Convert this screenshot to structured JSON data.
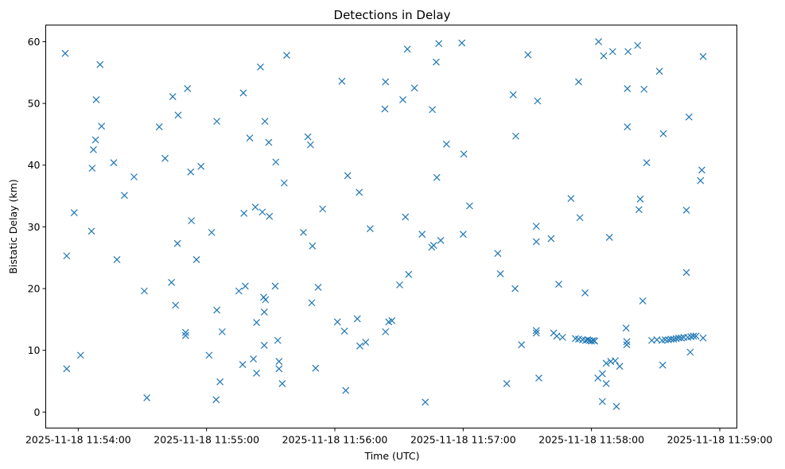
{
  "chart_data": {
    "type": "scatter",
    "title": "Detections in Delay",
    "xlabel": "Time (UTC)",
    "ylabel": "Bistatic Delay (km)",
    "marker": "x",
    "color": "#1f77b4",
    "x_unit": "seconds after 2025-11-18 11:54:00",
    "xlim": [
      -15.2,
      308.0
    ],
    "ylim": [
      -2.6,
      62.7
    ],
    "x_ticks": [
      {
        "value": 0,
        "label": "2025-11-18 11:54:00"
      },
      {
        "value": 60,
        "label": "2025-11-18 11:55:00"
      },
      {
        "value": 120,
        "label": "2025-11-18 11:56:00"
      },
      {
        "value": 180,
        "label": "2025-11-18 11:57:00"
      },
      {
        "value": 240,
        "label": "2025-11-18 11:58:00"
      },
      {
        "value": 300,
        "label": "2025-11-18 11:59:00"
      }
    ],
    "y_ticks": [
      {
        "value": 0,
        "label": "0"
      },
      {
        "value": 10,
        "label": "10"
      },
      {
        "value": 20,
        "label": "20"
      },
      {
        "value": 30,
        "label": "30"
      },
      {
        "value": 40,
        "label": "40"
      },
      {
        "value": 50,
        "label": "50"
      },
      {
        "value": 60,
        "label": "60"
      }
    ],
    "points": [
      [
        -6.1,
        58.1
      ],
      [
        -5.4,
        25.3
      ],
      [
        -5.4,
        7.0
      ],
      [
        -1.9,
        32.3
      ],
      [
        1.1,
        9.2
      ],
      [
        6.2,
        29.3
      ],
      [
        6.5,
        39.5
      ],
      [
        7.1,
        42.5
      ],
      [
        8.1,
        44.1
      ],
      [
        8.4,
        50.6
      ],
      [
        10.2,
        56.3
      ],
      [
        10.9,
        46.3
      ],
      [
        16.6,
        40.4
      ],
      [
        18.1,
        24.7
      ],
      [
        21.6,
        35.1
      ],
      [
        26.1,
        38.1
      ],
      [
        30.9,
        19.6
      ],
      [
        32.1,
        2.3
      ],
      [
        37.9,
        46.2
      ],
      [
        40.6,
        41.1
      ],
      [
        43.6,
        21.0
      ],
      [
        44.2,
        51.1
      ],
      [
        45.5,
        17.3
      ],
      [
        46.4,
        27.3
      ],
      [
        46.7,
        48.1
      ],
      [
        50.2,
        12.9
      ],
      [
        50.2,
        12.4
      ],
      [
        51.1,
        52.4
      ],
      [
        52.6,
        38.9
      ],
      [
        52.9,
        31.0
      ],
      [
        55.3,
        24.7
      ],
      [
        57.4,
        39.8
      ],
      [
        61.2,
        9.2
      ],
      [
        62.4,
        29.1
      ],
      [
        64.5,
        2.0
      ],
      [
        64.8,
        16.5
      ],
      [
        64.8,
        47.1
      ],
      [
        66.3,
        4.9
      ],
      [
        67.3,
        13.0
      ],
      [
        75.1,
        19.6
      ],
      [
        76.9,
        7.7
      ],
      [
        77.2,
        51.7
      ],
      [
        77.5,
        32.2
      ],
      [
        78.1,
        20.4
      ],
      [
        80.2,
        44.4
      ],
      [
        81.9,
        8.6
      ],
      [
        82.8,
        33.2
      ],
      [
        83.4,
        14.5
      ],
      [
        83.4,
        6.3
      ],
      [
        85.2,
        55.9
      ],
      [
        86.1,
        32.4
      ],
      [
        86.7,
        18.6
      ],
      [
        87.0,
        10.8
      ],
      [
        87.0,
        16.2
      ],
      [
        87.3,
        47.1
      ],
      [
        87.6,
        18.2
      ],
      [
        89.1,
        43.7
      ],
      [
        89.4,
        31.7
      ],
      [
        92.1,
        20.4
      ],
      [
        92.4,
        40.5
      ],
      [
        93.3,
        11.6
      ],
      [
        93.9,
        8.2
      ],
      [
        93.9,
        7.0
      ],
      [
        95.4,
        4.6
      ],
      [
        96.3,
        37.1
      ],
      [
        97.5,
        57.8
      ],
      [
        105.3,
        29.1
      ],
      [
        107.4,
        44.6
      ],
      [
        108.6,
        43.3
      ],
      [
        109.2,
        17.7
      ],
      [
        109.5,
        26.9
      ],
      [
        111.0,
        7.1
      ],
      [
        112.2,
        20.2
      ],
      [
        114.3,
        32.9
      ],
      [
        121.2,
        14.6
      ],
      [
        123.3,
        53.6
      ],
      [
        124.5,
        13.1
      ],
      [
        125.1,
        3.5
      ],
      [
        126.0,
        38.3
      ],
      [
        130.5,
        15.1
      ],
      [
        131.4,
        35.6
      ],
      [
        131.7,
        10.7
      ],
      [
        134.4,
        11.3
      ],
      [
        136.5,
        29.7
      ],
      [
        143.4,
        49.1
      ],
      [
        143.7,
        53.5
      ],
      [
        143.7,
        13.0
      ],
      [
        145.2,
        14.6
      ],
      [
        146.7,
        14.8
      ],
      [
        150.3,
        20.6
      ],
      [
        151.8,
        50.6
      ],
      [
        153.0,
        31.6
      ],
      [
        153.9,
        58.8
      ],
      [
        154.5,
        22.3
      ],
      [
        157.2,
        52.5
      ],
      [
        160.8,
        28.8
      ],
      [
        162.3,
        1.6
      ],
      [
        165.3,
        26.7
      ],
      [
        165.6,
        49.0
      ],
      [
        166.2,
        27.0
      ],
      [
        167.4,
        56.7
      ],
      [
        167.7,
        38.0
      ],
      [
        168.6,
        59.7
      ],
      [
        169.5,
        27.8
      ],
      [
        172.2,
        43.4
      ],
      [
        179.4,
        59.8
      ],
      [
        180.0,
        28.8
      ],
      [
        180.3,
        41.8
      ],
      [
        183.0,
        33.4
      ],
      [
        196.2,
        25.7
      ],
      [
        197.4,
        22.4
      ],
      [
        200.4,
        4.6
      ],
      [
        203.4,
        51.4
      ],
      [
        204.6,
        44.7
      ],
      [
        204.3,
        20.0
      ],
      [
        207.3,
        10.9
      ],
      [
        210.3,
        57.9
      ],
      [
        214.2,
        27.6
      ],
      [
        214.2,
        30.1
      ],
      [
        214.2,
        13.2
      ],
      [
        214.2,
        12.8
      ],
      [
        214.8,
        50.4
      ],
      [
        215.4,
        5.5
      ],
      [
        221.1,
        28.1
      ],
      [
        222.3,
        12.8
      ],
      [
        223.8,
        12.3
      ],
      [
        224.7,
        20.7
      ],
      [
        226.5,
        12.1
      ],
      [
        230.4,
        34.6
      ],
      [
        232.5,
        11.9
      ],
      [
        234.0,
        53.5
      ],
      [
        234.0,
        11.8
      ],
      [
        234.6,
        31.5
      ],
      [
        235.8,
        11.7
      ],
      [
        237.0,
        19.3
      ],
      [
        237.3,
        11.6
      ],
      [
        238.2,
        11.7
      ],
      [
        239.1,
        11.6
      ],
      [
        240.0,
        11.5
      ],
      [
        240.9,
        11.6
      ],
      [
        241.5,
        11.5
      ],
      [
        243.0,
        5.5
      ],
      [
        243.3,
        60.0
      ],
      [
        245.1,
        1.7
      ],
      [
        245.1,
        6.2
      ],
      [
        245.7,
        57.7
      ],
      [
        246.9,
        4.6
      ],
      [
        246.9,
        7.9
      ],
      [
        248.4,
        28.3
      ],
      [
        249.0,
        8.2
      ],
      [
        249.9,
        58.4
      ],
      [
        251.1,
        8.3
      ],
      [
        251.7,
        0.9
      ],
      [
        253.2,
        7.4
      ],
      [
        256.2,
        13.6
      ],
      [
        256.5,
        11.4
      ],
      [
        256.5,
        10.9
      ],
      [
        256.8,
        52.4
      ],
      [
        256.8,
        46.2
      ],
      [
        257.1,
        58.4
      ],
      [
        261.6,
        59.4
      ],
      [
        262.2,
        32.8
      ],
      [
        262.8,
        34.5
      ],
      [
        264.0,
        18.0
      ],
      [
        264.6,
        52.3
      ],
      [
        265.8,
        40.4
      ],
      [
        268.2,
        11.6
      ],
      [
        270.6,
        11.7
      ],
      [
        271.8,
        55.2
      ],
      [
        273.0,
        11.6
      ],
      [
        273.3,
        7.6
      ],
      [
        273.6,
        45.1
      ],
      [
        274.5,
        11.7
      ],
      [
        276.0,
        11.7
      ],
      [
        277.2,
        11.8
      ],
      [
        278.4,
        11.8
      ],
      [
        279.6,
        11.9
      ],
      [
        280.8,
        12.0
      ],
      [
        282.0,
        12.0
      ],
      [
        283.2,
        12.1
      ],
      [
        284.4,
        22.6
      ],
      [
        284.4,
        32.7
      ],
      [
        285.0,
        12.1
      ],
      [
        285.6,
        47.8
      ],
      [
        286.2,
        9.7
      ],
      [
        286.5,
        12.2
      ],
      [
        287.7,
        12.3
      ],
      [
        288.9,
        12.3
      ],
      [
        291.0,
        37.5
      ],
      [
        291.6,
        39.2
      ],
      [
        292.2,
        57.6
      ],
      [
        292.2,
        12.0
      ]
    ]
  }
}
